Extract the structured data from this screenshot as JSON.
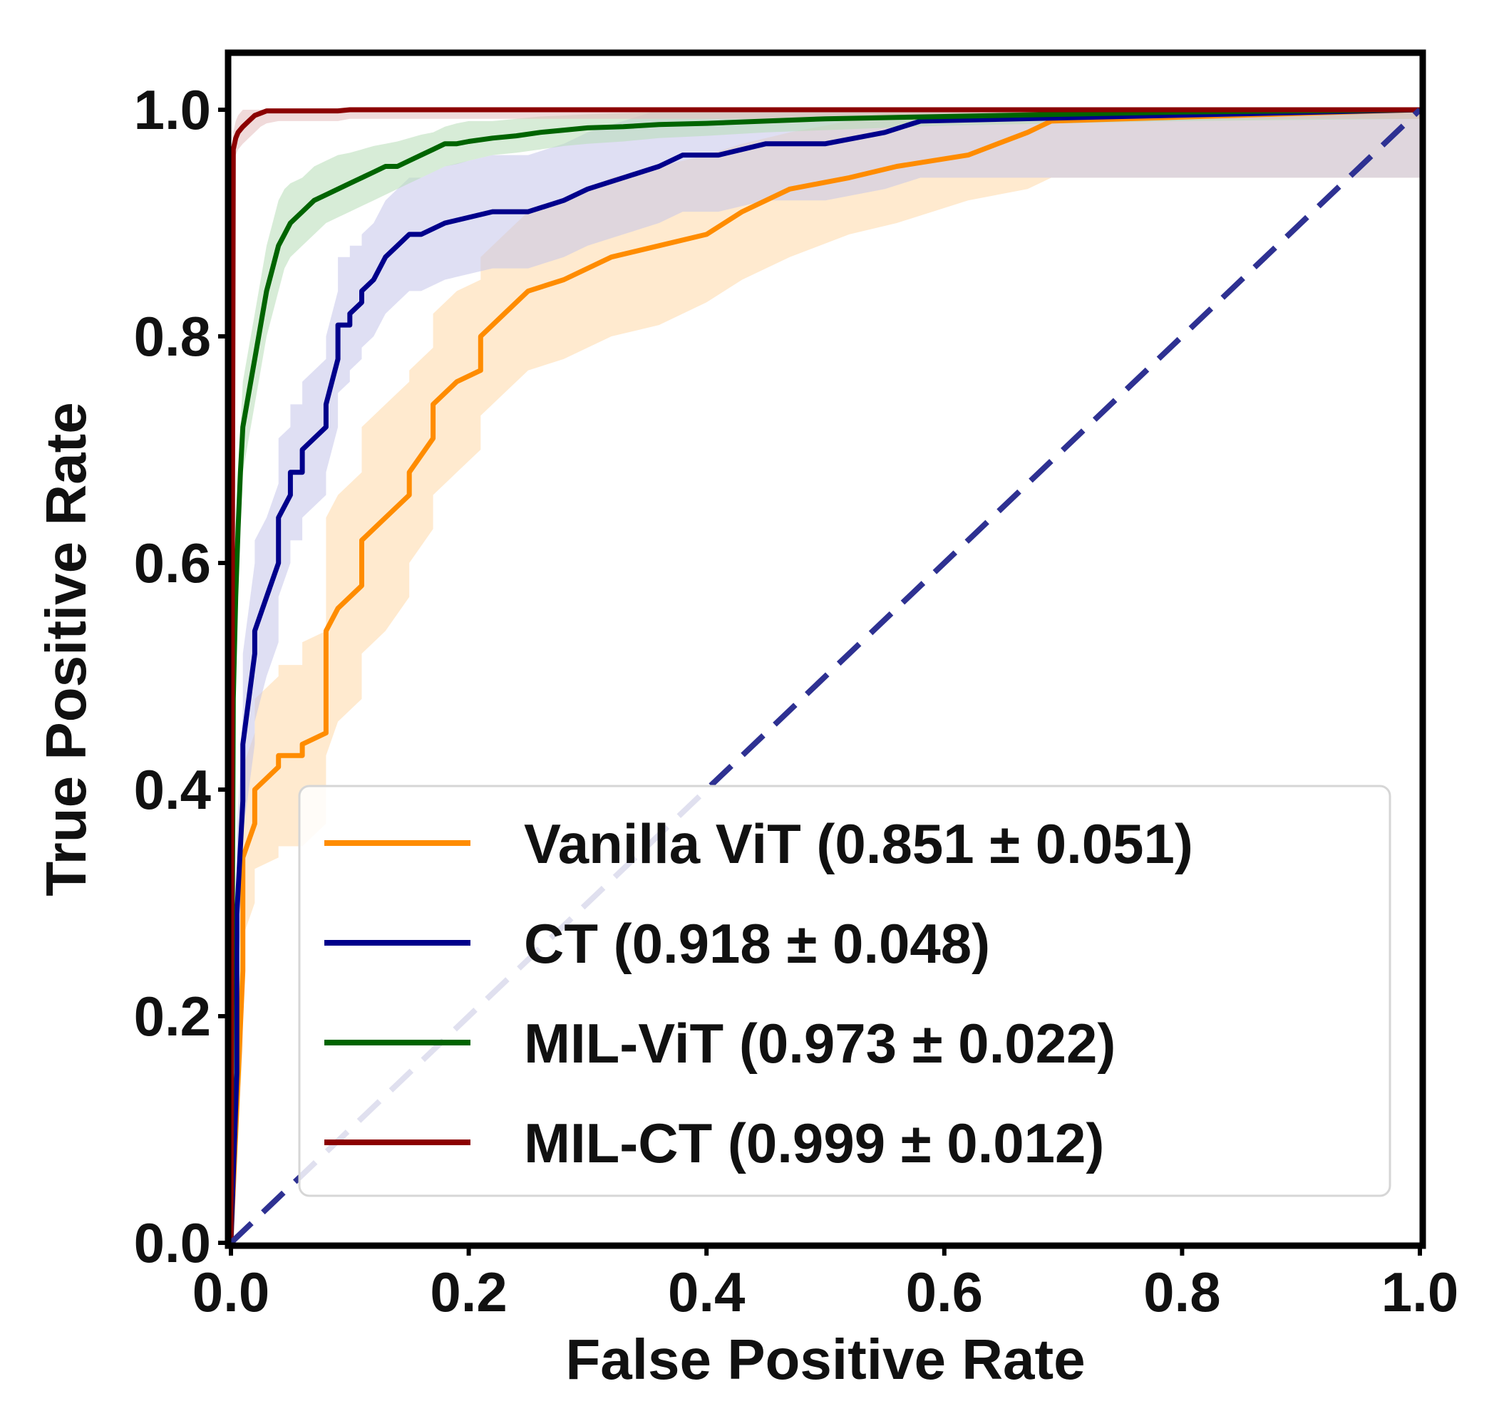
{
  "chart_data": {
    "type": "line",
    "title": "",
    "xlabel": "False Positive Rate",
    "ylabel": "True Positive Rate",
    "xlim": [
      0.0,
      1.0
    ],
    "ylim": [
      0.0,
      1.0
    ],
    "x_ticks": [
      "0.0",
      "0.2",
      "0.4",
      "0.6",
      "0.8",
      "1.0"
    ],
    "y_ticks": [
      "0.0",
      "0.2",
      "0.4",
      "0.6",
      "0.8",
      "1.0"
    ],
    "grid": false,
    "legend_position": "lower-right",
    "series": [
      {
        "name": "Vanilla ViT (0.851 ± 0.051)",
        "color": "#ff8c00",
        "band_color": "#ffd9a8",
        "x": [
          0.0,
          0.01,
          0.01,
          0.02,
          0.02,
          0.04,
          0.04,
          0.06,
          0.06,
          0.08,
          0.08,
          0.09,
          0.09,
          0.11,
          0.11,
          0.13,
          0.13,
          0.15,
          0.15,
          0.17,
          0.17,
          0.19,
          0.19,
          0.21,
          0.21,
          0.23,
          0.23,
          0.25,
          0.25,
          0.28,
          0.28,
          0.32,
          0.32,
          0.36,
          0.36,
          0.4,
          0.4,
          0.43,
          0.43,
          0.47,
          0.47,
          0.52,
          0.52,
          0.56,
          0.56,
          0.62,
          0.62,
          0.67,
          0.67,
          0.69,
          1.0
        ],
        "y": [
          0.0,
          0.24,
          0.34,
          0.37,
          0.4,
          0.42,
          0.43,
          0.43,
          0.44,
          0.45,
          0.54,
          0.56,
          0.56,
          0.58,
          0.62,
          0.64,
          0.64,
          0.66,
          0.68,
          0.71,
          0.74,
          0.76,
          0.76,
          0.77,
          0.8,
          0.82,
          0.82,
          0.84,
          0.84,
          0.85,
          0.85,
          0.87,
          0.87,
          0.88,
          0.88,
          0.89,
          0.89,
          0.91,
          0.91,
          0.93,
          0.93,
          0.94,
          0.94,
          0.95,
          0.95,
          0.96,
          0.96,
          0.98,
          0.98,
          0.99,
          1.0
        ],
        "band_lower": [
          0.0,
          0.17,
          0.27,
          0.3,
          0.33,
          0.34,
          0.35,
          0.35,
          0.35,
          0.37,
          0.43,
          0.46,
          0.46,
          0.48,
          0.52,
          0.54,
          0.54,
          0.57,
          0.6,
          0.63,
          0.66,
          0.68,
          0.68,
          0.7,
          0.73,
          0.75,
          0.75,
          0.77,
          0.77,
          0.78,
          0.78,
          0.8,
          0.8,
          0.81,
          0.81,
          0.83,
          0.83,
          0.85,
          0.85,
          0.87,
          0.87,
          0.89,
          0.89,
          0.9,
          0.9,
          0.92,
          0.92,
          0.93,
          0.93,
          0.94,
          0.94
        ],
        "band_upper": [
          0.0,
          0.32,
          0.42,
          0.45,
          0.48,
          0.5,
          0.51,
          0.51,
          0.53,
          0.54,
          0.64,
          0.66,
          0.66,
          0.68,
          0.72,
          0.74,
          0.74,
          0.76,
          0.77,
          0.79,
          0.82,
          0.84,
          0.84,
          0.85,
          0.87,
          0.89,
          0.89,
          0.91,
          0.91,
          0.92,
          0.92,
          0.94,
          0.94,
          0.95,
          0.95,
          0.96,
          0.96,
          0.97,
          0.97,
          0.98,
          0.98,
          0.99,
          0.99,
          1.0,
          1.0,
          1.0,
          1.0,
          1.0,
          1.0,
          1.0,
          1.0
        ]
      },
      {
        "name": "CT (0.918 ± 0.048)",
        "color": "#00008b",
        "band_color": "#c5c5ea",
        "x": [
          0.0,
          0.005,
          0.005,
          0.01,
          0.01,
          0.02,
          0.02,
          0.03,
          0.03,
          0.04,
          0.04,
          0.05,
          0.05,
          0.06,
          0.06,
          0.08,
          0.08,
          0.09,
          0.09,
          0.1,
          0.1,
          0.11,
          0.11,
          0.12,
          0.12,
          0.13,
          0.13,
          0.14,
          0.14,
          0.15,
          0.15,
          0.16,
          0.16,
          0.18,
          0.18,
          0.22,
          0.22,
          0.25,
          0.25,
          0.28,
          0.28,
          0.3,
          0.3,
          0.33,
          0.33,
          0.36,
          0.36,
          0.38,
          0.38,
          0.41,
          0.41,
          0.45,
          0.45,
          0.5,
          0.5,
          0.55,
          0.55,
          0.58,
          0.58,
          1.0
        ],
        "y": [
          0.0,
          0.15,
          0.29,
          0.39,
          0.44,
          0.52,
          0.54,
          0.57,
          0.57,
          0.6,
          0.64,
          0.66,
          0.68,
          0.68,
          0.7,
          0.72,
          0.74,
          0.78,
          0.81,
          0.81,
          0.82,
          0.83,
          0.84,
          0.85,
          0.85,
          0.87,
          0.87,
          0.88,
          0.88,
          0.89,
          0.89,
          0.89,
          0.89,
          0.9,
          0.9,
          0.91,
          0.91,
          0.91,
          0.91,
          0.92,
          0.92,
          0.93,
          0.93,
          0.94,
          0.94,
          0.95,
          0.95,
          0.96,
          0.96,
          0.96,
          0.96,
          0.97,
          0.97,
          0.97,
          0.97,
          0.98,
          0.98,
          0.99,
          0.99,
          1.0
        ],
        "band_lower": [
          0.0,
          0.1,
          0.22,
          0.31,
          0.36,
          0.44,
          0.46,
          0.5,
          0.5,
          0.53,
          0.57,
          0.6,
          0.62,
          0.62,
          0.64,
          0.66,
          0.68,
          0.72,
          0.75,
          0.76,
          0.77,
          0.78,
          0.79,
          0.8,
          0.8,
          0.82,
          0.82,
          0.83,
          0.83,
          0.84,
          0.84,
          0.84,
          0.84,
          0.85,
          0.85,
          0.86,
          0.86,
          0.86,
          0.86,
          0.87,
          0.87,
          0.88,
          0.88,
          0.89,
          0.89,
          0.9,
          0.9,
          0.91,
          0.91,
          0.91,
          0.91,
          0.92,
          0.92,
          0.92,
          0.92,
          0.93,
          0.93,
          0.94,
          0.94,
          0.94
        ],
        "band_upper": [
          0.0,
          0.2,
          0.36,
          0.47,
          0.52,
          0.6,
          0.62,
          0.64,
          0.64,
          0.67,
          0.71,
          0.72,
          0.74,
          0.74,
          0.76,
          0.78,
          0.8,
          0.84,
          0.87,
          0.87,
          0.88,
          0.88,
          0.89,
          0.9,
          0.9,
          0.92,
          0.92,
          0.93,
          0.93,
          0.94,
          0.94,
          0.94,
          0.94,
          0.95,
          0.95,
          0.96,
          0.96,
          0.96,
          0.96,
          0.97,
          0.97,
          0.98,
          0.98,
          0.99,
          0.99,
          1.0,
          1.0,
          1.0,
          1.0,
          1.0,
          1.0,
          1.0,
          1.0,
          1.0,
          1.0,
          1.0,
          1.0,
          1.0,
          1.0,
          1.0
        ]
      },
      {
        "name": "MIL-ViT (0.973 ± 0.022)",
        "color": "#006400",
        "band_color": "#b7dcb7",
        "x": [
          0.0,
          0.002,
          0.004,
          0.006,
          0.008,
          0.01,
          0.015,
          0.02,
          0.025,
          0.03,
          0.035,
          0.04,
          0.045,
          0.05,
          0.06,
          0.07,
          0.08,
          0.09,
          0.1,
          0.11,
          0.12,
          0.13,
          0.14,
          0.15,
          0.16,
          0.17,
          0.18,
          0.19,
          0.2,
          0.22,
          0.24,
          0.26,
          0.28,
          0.3,
          0.33,
          0.36,
          0.4,
          0.45,
          0.5,
          0.55,
          0.6,
          0.7,
          0.8,
          1.0
        ],
        "y": [
          0.0,
          0.48,
          0.57,
          0.63,
          0.68,
          0.72,
          0.75,
          0.78,
          0.81,
          0.84,
          0.86,
          0.88,
          0.89,
          0.9,
          0.91,
          0.92,
          0.925,
          0.93,
          0.935,
          0.94,
          0.945,
          0.95,
          0.95,
          0.955,
          0.96,
          0.965,
          0.97,
          0.97,
          0.972,
          0.975,
          0.977,
          0.98,
          0.982,
          0.984,
          0.985,
          0.987,
          0.988,
          0.99,
          0.992,
          0.993,
          0.994,
          0.996,
          0.998,
          1.0
        ],
        "band_lower": [
          0.0,
          0.44,
          0.53,
          0.59,
          0.64,
          0.68,
          0.71,
          0.74,
          0.77,
          0.8,
          0.82,
          0.84,
          0.86,
          0.87,
          0.88,
          0.89,
          0.9,
          0.905,
          0.91,
          0.915,
          0.92,
          0.925,
          0.93,
          0.935,
          0.94,
          0.945,
          0.95,
          0.952,
          0.955,
          0.96,
          0.962,
          0.965,
          0.968,
          0.97,
          0.972,
          0.975,
          0.977,
          0.98,
          0.982,
          0.984,
          0.986,
          0.988,
          0.99,
          0.992
        ],
        "band_upper": [
          0.0,
          0.52,
          0.61,
          0.67,
          0.72,
          0.76,
          0.79,
          0.82,
          0.85,
          0.88,
          0.9,
          0.92,
          0.93,
          0.935,
          0.94,
          0.95,
          0.955,
          0.96,
          0.962,
          0.965,
          0.968,
          0.97,
          0.972,
          0.975,
          0.978,
          0.98,
          0.985,
          0.988,
          0.99,
          0.99,
          0.992,
          0.994,
          0.995,
          0.996,
          0.997,
          0.998,
          0.999,
          1.0,
          1.0,
          1.0,
          1.0,
          1.0,
          1.0,
          1.0
        ]
      },
      {
        "name": "MIL-CT (0.999 ± 0.012)",
        "color": "#8b0000",
        "band_color": "#e3bcbc",
        "x": [
          0.0,
          0.002,
          0.004,
          0.006,
          0.01,
          0.015,
          0.02,
          0.025,
          0.03,
          0.04,
          0.06,
          0.09,
          0.1,
          1.0
        ],
        "y": [
          0.0,
          0.965,
          0.975,
          0.98,
          0.985,
          0.99,
          0.995,
          0.997,
          0.999,
          0.999,
          0.999,
          0.999,
          1.0,
          1.0
        ],
        "band_lower": [
          0.0,
          0.95,
          0.96,
          0.965,
          0.97,
          0.975,
          0.98,
          0.985,
          0.988,
          0.99,
          0.99,
          0.99,
          0.992,
          0.992
        ],
        "band_upper": [
          0.0,
          0.98,
          0.99,
          0.995,
          1.0,
          1.0,
          1.0,
          1.0,
          1.0,
          1.0,
          1.0,
          1.0,
          1.0,
          1.0
        ]
      }
    ],
    "reference_line": {
      "x": [
        0.0,
        1.0
      ],
      "y": [
        0.0,
        1.0
      ],
      "color": "#2e3192",
      "style": "dashed"
    }
  }
}
